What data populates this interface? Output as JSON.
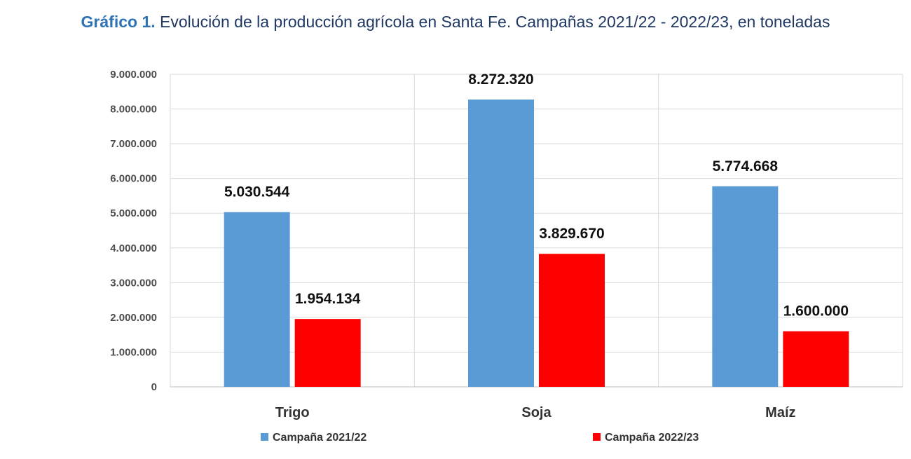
{
  "figure": {
    "label": "Gráfico 1.",
    "caption": "Evolución de la producción agrícola en Santa Fe. Campañas 2021/22 - 2022/23, en toneladas"
  },
  "chart_data": {
    "type": "bar",
    "categories": [
      "Trigo",
      "Soja",
      "Maíz"
    ],
    "series": [
      {
        "name": "Campaña 2021/22",
        "color": "#5b9bd5",
        "values": [
          5030544,
          8272320,
          5774668
        ],
        "labels": [
          "5.030.544",
          "8.272.320",
          "5.774.668"
        ]
      },
      {
        "name": "Campaña 2022/23",
        "color": "#ff0000",
        "values": [
          1954134,
          3829670,
          1600000
        ],
        "labels": [
          "1.954.134",
          "3.829.670",
          "1.600.000"
        ]
      }
    ],
    "ylim": [
      0,
      9000000
    ],
    "yticks": [
      0,
      1000000,
      2000000,
      3000000,
      4000000,
      5000000,
      6000000,
      7000000,
      8000000,
      9000000
    ],
    "ytick_labels": [
      "0",
      "1.000.000",
      "2.000.000",
      "3.000.000",
      "4.000.000",
      "5.000.000",
      "6.000.000",
      "7.000.000",
      "8.000.000",
      "9.000.000"
    ],
    "grid": true,
    "legend": "bottom"
  }
}
